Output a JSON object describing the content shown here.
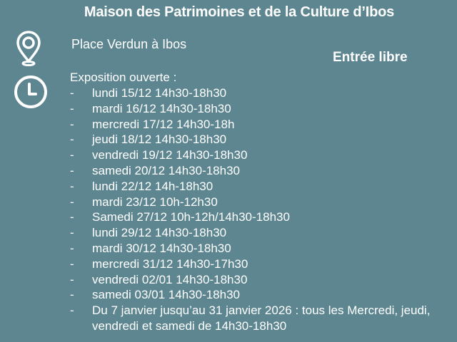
{
  "title": "Maison des Patrimoines et de la Culture d’Ibos",
  "place": "Place Verdun à Ibos",
  "entree": "Entrée libre",
  "icons": [
    "map-pin-icon",
    "clock-icon"
  ],
  "expo_label": "Exposition ouverte :",
  "bullet": "-",
  "schedule": [
    "lundi 15/12 14h30-18h30",
    "mardi 16/12 14h30-18h30",
    "mercredi 17/12 14h30-18h",
    "jeudi 18/12 14h30-18h30",
    "vendredi 19/12 14h30-18h30",
    "samedi 20/12 14h30-18h30",
    "lundi 22/12 14h-18h30",
    "mardi 23/12 10h-12h30",
    "Samedi 27/12 10h-12h/14h30-18h30",
    "lundi 29/12 14h30-18h30",
    "mardi 30/12 14h30-18h30",
    "mercredi 31/12 14h30-17h30",
    "vendredi 02/01 14h30-18h30",
    "samedi 03/01 14h30-18h30",
    "Du 7 janvier jusqu’au 31 janvier 2026 : tous les Mercredi, jeudi, vendredi et samedi de 14h30-18h30"
  ],
  "colors": {
    "background": "#5d8690",
    "text": "#ffffff"
  }
}
